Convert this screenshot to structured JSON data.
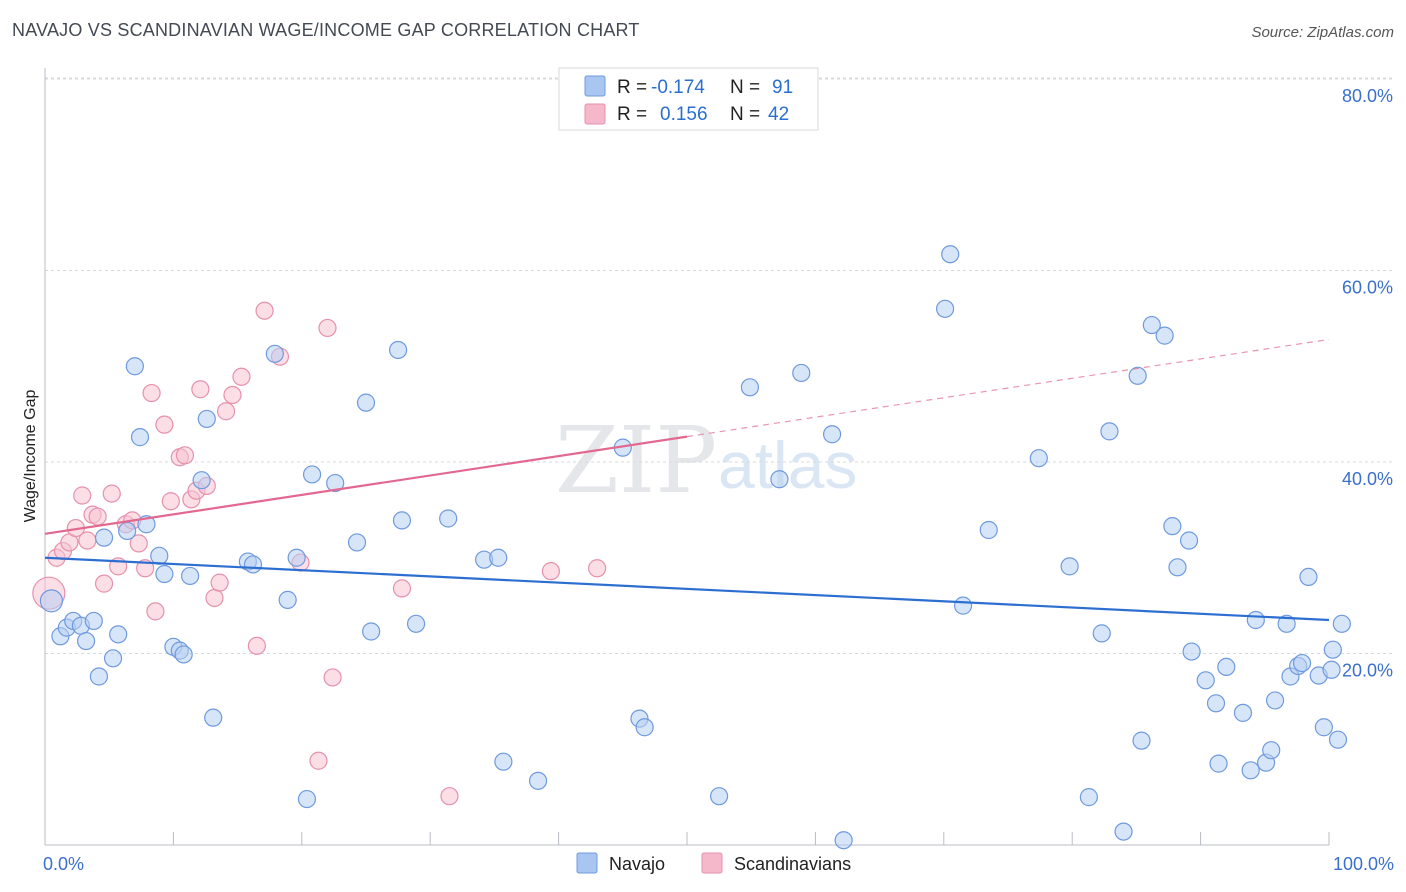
{
  "title": "NAVAJO VS SCANDINAVIAN WAGE/INCOME GAP CORRELATION CHART",
  "source": "Source: ZipAtlas.com",
  "watermark": {
    "zip": "ZIP",
    "atlas": "atlas"
  },
  "legend_top": [
    {
      "r_label": "R =",
      "r_value": "-0.174",
      "n_label": "N =",
      "n_value": "91",
      "color": "#a9c6f0"
    },
    {
      "r_label": "R =",
      "r_value": "0.156",
      "n_label": "N =",
      "n_value": "42",
      "color": "#f5b8cb"
    }
  ],
  "legend_bottom": [
    {
      "name": "Navajo",
      "color": "#a9c6f0"
    },
    {
      "name": "Scandinavians",
      "color": "#f5b8cb"
    }
  ],
  "colors": {
    "navajo_fill": "#b7cff2",
    "navajo_stroke": "#6f9ade",
    "navajo_line": "#2d6fd1",
    "scand_fill": "#f7c2d2",
    "scand_stroke": "#e691ad",
    "scand_line": "#e2688f",
    "grid": "#d6d9de",
    "tick_label": "#3a6fcd"
  },
  "chart_data": {
    "type": "scatter",
    "title": "NAVAJO VS SCANDINAVIAN WAGE/INCOME GAP CORRELATION CHART",
    "xlabel": "",
    "ylabel": "Wage/Income Gap",
    "xlim": [
      0,
      100
    ],
    "ylim": [
      0,
      80
    ],
    "x_tick_labels": [
      {
        "value": 0,
        "label": "0.0%"
      },
      {
        "value": 100,
        "label": "100.0%"
      }
    ],
    "y_tick_labels": [
      {
        "value": 20,
        "label": "20.0%"
      },
      {
        "value": 40,
        "label": "40.0%"
      },
      {
        "value": 60,
        "label": "60.0%"
      },
      {
        "value": 80,
        "label": "80.0%"
      }
    ],
    "grid": "horizontal dashed",
    "legend_placement": "top-center",
    "series": [
      {
        "name": "Navajo",
        "r": -0.174,
        "n": 91,
        "trend": {
          "x": [
            0,
            100
          ],
          "y": [
            30.0,
            23.5
          ],
          "style": "solid"
        },
        "points": [
          [
            0.5,
            25.5
          ],
          [
            1.2,
            21.8
          ],
          [
            1.7,
            22.7
          ],
          [
            2.2,
            23.4
          ],
          [
            2.8,
            22.9
          ],
          [
            3.2,
            21.3
          ],
          [
            3.8,
            23.4
          ],
          [
            4.2,
            17.6
          ],
          [
            4.6,
            32.1
          ],
          [
            5.3,
            19.5
          ],
          [
            5.7,
            22.0
          ],
          [
            6.4,
            32.8
          ],
          [
            7.0,
            50.0
          ],
          [
            7.4,
            42.6
          ],
          [
            7.9,
            33.5
          ],
          [
            8.9,
            30.2
          ],
          [
            9.3,
            28.3
          ],
          [
            10.0,
            20.7
          ],
          [
            10.5,
            20.3
          ],
          [
            10.8,
            19.9
          ],
          [
            11.3,
            28.1
          ],
          [
            12.2,
            38.1
          ],
          [
            12.6,
            44.5
          ],
          [
            13.1,
            13.3
          ],
          [
            15.8,
            29.6
          ],
          [
            16.2,
            29.3
          ],
          [
            17.9,
            51.3
          ],
          [
            18.9,
            25.6
          ],
          [
            19.6,
            30.0
          ],
          [
            20.4,
            4.8
          ],
          [
            20.8,
            38.7
          ],
          [
            22.6,
            37.8
          ],
          [
            24.3,
            31.6
          ],
          [
            25.0,
            46.2
          ],
          [
            25.4,
            22.3
          ],
          [
            27.5,
            51.7
          ],
          [
            27.8,
            33.9
          ],
          [
            28.9,
            23.1
          ],
          [
            31.4,
            34.1
          ],
          [
            34.2,
            29.8
          ],
          [
            35.3,
            30.0
          ],
          [
            35.7,
            8.7
          ],
          [
            38.4,
            6.7
          ],
          [
            45.0,
            41.5
          ],
          [
            46.3,
            13.2
          ],
          [
            46.7,
            12.3
          ],
          [
            52.5,
            5.1
          ],
          [
            54.9,
            47.8
          ],
          [
            57.2,
            38.2
          ],
          [
            58.9,
            49.3
          ],
          [
            61.3,
            42.9
          ],
          [
            62.2,
            0.5
          ],
          [
            70.1,
            56.0
          ],
          [
            70.5,
            61.7
          ],
          [
            71.5,
            25.0
          ],
          [
            73.5,
            32.9
          ],
          [
            77.4,
            40.4
          ],
          [
            79.8,
            29.1
          ],
          [
            81.3,
            5.0
          ],
          [
            82.3,
            22.1
          ],
          [
            82.9,
            43.2
          ],
          [
            84.0,
            1.4
          ],
          [
            85.1,
            49.0
          ],
          [
            85.4,
            10.9
          ],
          [
            86.2,
            54.3
          ],
          [
            87.2,
            53.2
          ],
          [
            87.8,
            33.3
          ],
          [
            88.2,
            29.0
          ],
          [
            89.1,
            31.8
          ],
          [
            89.3,
            20.2
          ],
          [
            90.4,
            17.2
          ],
          [
            91.2,
            14.8
          ],
          [
            91.4,
            8.5
          ],
          [
            92.0,
            18.6
          ],
          [
            93.3,
            13.8
          ],
          [
            93.9,
            7.8
          ],
          [
            94.3,
            23.5
          ],
          [
            95.1,
            8.6
          ],
          [
            95.5,
            9.9
          ],
          [
            95.8,
            15.1
          ],
          [
            96.7,
            23.1
          ],
          [
            97.0,
            17.6
          ],
          [
            97.6,
            18.7
          ],
          [
            97.9,
            19.0
          ],
          [
            98.4,
            28.0
          ],
          [
            99.2,
            17.7
          ],
          [
            99.6,
            12.3
          ],
          [
            100.3,
            20.4
          ],
          [
            100.7,
            11.0
          ],
          [
            101.0,
            23.1
          ],
          [
            100.2,
            18.3
          ]
        ]
      },
      {
        "name": "Scandinavians",
        "r": 0.156,
        "n": 42,
        "trend": {
          "x": [
            0,
            100
          ],
          "y": [
            32.5,
            52.8
          ],
          "solid_until_x": 50,
          "style": "solid-then-dashed"
        },
        "points": [
          [
            0.3,
            26.3
          ],
          [
            0.9,
            30.0
          ],
          [
            1.4,
            30.7
          ],
          [
            1.9,
            31.6
          ],
          [
            2.4,
            33.1
          ],
          [
            2.9,
            36.5
          ],
          [
            3.3,
            31.8
          ],
          [
            3.7,
            34.5
          ],
          [
            4.1,
            34.3
          ],
          [
            4.6,
            27.3
          ],
          [
            5.2,
            36.7
          ],
          [
            5.7,
            29.1
          ],
          [
            6.3,
            33.5
          ],
          [
            6.8,
            33.9
          ],
          [
            7.3,
            31.5
          ],
          [
            7.8,
            28.9
          ],
          [
            8.3,
            47.2
          ],
          [
            8.6,
            24.4
          ],
          [
            9.3,
            43.9
          ],
          [
            9.8,
            35.9
          ],
          [
            10.5,
            40.5
          ],
          [
            10.9,
            40.7
          ],
          [
            11.4,
            36.1
          ],
          [
            11.8,
            37.0
          ],
          [
            12.1,
            47.6
          ],
          [
            12.6,
            37.5
          ],
          [
            13.2,
            25.8
          ],
          [
            13.6,
            27.4
          ],
          [
            14.1,
            45.3
          ],
          [
            14.6,
            47.0
          ],
          [
            15.3,
            48.9
          ],
          [
            16.5,
            20.8
          ],
          [
            17.1,
            55.8
          ],
          [
            18.3,
            51.0
          ],
          [
            19.9,
            29.5
          ],
          [
            21.3,
            8.8
          ],
          [
            22.0,
            54.0
          ],
          [
            22.4,
            17.5
          ],
          [
            27.8,
            26.8
          ],
          [
            31.5,
            5.1
          ],
          [
            39.4,
            28.6
          ],
          [
            43.0,
            28.9
          ]
        ]
      }
    ]
  }
}
